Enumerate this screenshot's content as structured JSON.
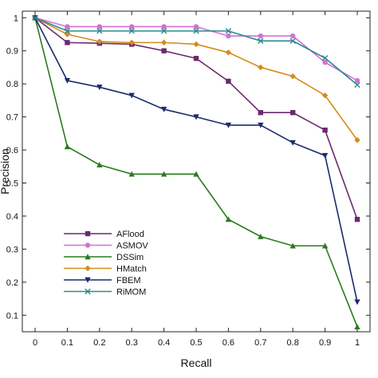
{
  "chart_data": {
    "type": "line",
    "xlabel": "Recall",
    "ylabel": "Precision",
    "xlim": [
      0,
      1
    ],
    "ylim": [
      0.05,
      1.02
    ],
    "x_ticks": [
      "0",
      "0.1",
      "0.2",
      "0.3",
      "0.4",
      "0.5",
      "0.6",
      "0.7",
      "0.8",
      "0.9",
      "1"
    ],
    "y_ticks": [
      "0.1",
      "0.2",
      "0.3",
      "0.4",
      "0.5",
      "0.6",
      "0.7",
      "0.8",
      "0.9",
      "1"
    ],
    "x": [
      0,
      0.1,
      0.2,
      0.3,
      0.4,
      0.5,
      0.6,
      0.7,
      0.8,
      0.9,
      1.0
    ],
    "grid": false,
    "legend_position": "bottom-left",
    "series": [
      {
        "name": "AFlood",
        "color": "#6a2a6e",
        "marker": "square",
        "values": [
          1.0,
          0.925,
          0.923,
          0.92,
          0.9,
          0.877,
          0.808,
          0.713,
          0.713,
          0.66,
          0.39
        ]
      },
      {
        "name": "ASMOV",
        "color": "#d66fd6",
        "marker": "circle",
        "values": [
          1.0,
          0.973,
          0.973,
          0.973,
          0.973,
          0.973,
          0.945,
          0.945,
          0.945,
          0.865,
          0.81
        ]
      },
      {
        "name": "DSSim",
        "color": "#2a7a1e",
        "marker": "triangle-up",
        "values": [
          1.0,
          0.61,
          0.555,
          0.527,
          0.527,
          0.527,
          0.39,
          0.338,
          0.31,
          0.31,
          0.065
        ]
      },
      {
        "name": "HMatch",
        "color": "#d48c1c",
        "marker": "diamond",
        "values": [
          1.0,
          0.95,
          0.928,
          0.925,
          0.925,
          0.92,
          0.895,
          0.85,
          0.823,
          0.765,
          0.63
        ]
      },
      {
        "name": "FBEM",
        "color": "#1c2a6e",
        "marker": "triangle-down",
        "values": [
          1.0,
          0.81,
          0.79,
          0.765,
          0.723,
          0.7,
          0.675,
          0.675,
          0.622,
          0.583,
          0.14
        ]
      },
      {
        "name": "RiMOM",
        "color": "#2a8a8c",
        "marker": "x",
        "values": [
          1.0,
          0.96,
          0.96,
          0.96,
          0.96,
          0.96,
          0.96,
          0.93,
          0.93,
          0.878,
          0.797
        ]
      }
    ]
  }
}
